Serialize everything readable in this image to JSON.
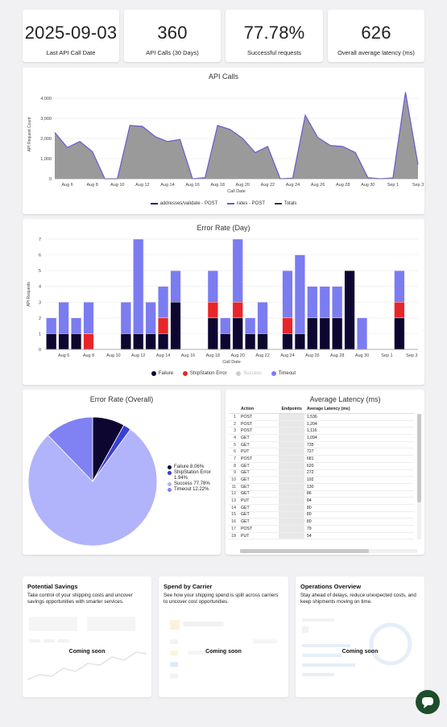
{
  "kpis": [
    {
      "value": "2025-09-03",
      "label": "Last API Call Date"
    },
    {
      "value": "360",
      "label": "API Calls (30 Days)"
    },
    {
      "value": "77.78%",
      "label": "Successful requests"
    },
    {
      "value": "626",
      "label": "Overall average latency (ms)"
    }
  ],
  "api_calls_chart": {
    "title": "API Calls",
    "ylabel": "API Request Count",
    "xlabel": "Call Date",
    "yticks": [
      "0",
      "1,000",
      "2,000",
      "3,000",
      "4,000"
    ],
    "xticks": [
      "Aug 6",
      "Aug 8",
      "Aug 10",
      "Aug 12",
      "Aug 14",
      "Aug 16",
      "Aug 18",
      "Aug 20",
      "Aug 22",
      "Aug 24",
      "Aug 26",
      "Aug 28",
      "Aug 30",
      "Sep 1",
      "Sep 3"
    ],
    "legend": [
      {
        "name": "addresses/validate - POST",
        "color": "#1a237e"
      },
      {
        "name": "rates - POST",
        "color": "#6a5acd"
      },
      {
        "name": "Totals",
        "color": "#333333"
      }
    ]
  },
  "error_rate_day_chart": {
    "title": "Error Rate (Day)",
    "ylabel": "API Requests",
    "xlabel": "Call Date",
    "yticks": [
      "0",
      "1",
      "2",
      "3",
      "4",
      "5",
      "6",
      "7"
    ],
    "legend": [
      {
        "name": "Failure",
        "color": "#0d0630"
      },
      {
        "name": "ShipStation Error",
        "color": "#e8262a"
      },
      {
        "name": "Success",
        "color": "#cfcfcf"
      },
      {
        "name": "Timeout",
        "color": "#7b7cf0"
      }
    ]
  },
  "error_rate_overall": {
    "title": "Error Rate (Overall)",
    "legend": [
      {
        "name": "Failure",
        "pct": "8.06%",
        "color": "#0d0630"
      },
      {
        "name": "ShipStation Error",
        "pct": "1.94%",
        "color": "#3a3fd6"
      },
      {
        "name": "Success",
        "pct": "77.78%",
        "color": "#b1b3fb"
      },
      {
        "name": "Timeout",
        "pct": "12.22%",
        "color": "#8081f2"
      }
    ]
  },
  "latency_table": {
    "title": "Average Latency (ms)",
    "headers": [
      "Action",
      "Endpoints",
      "Average Latency (ms)"
    ],
    "rows": [
      {
        "n": "1",
        "action": "POST",
        "latency": "1,536"
      },
      {
        "n": "2",
        "action": "POST",
        "latency": "1,204"
      },
      {
        "n": "3",
        "action": "POST",
        "latency": "1,116"
      },
      {
        "n": "4",
        "action": "GET",
        "latency": "1,094"
      },
      {
        "n": "5",
        "action": "GET",
        "latency": "735"
      },
      {
        "n": "6",
        "action": "PUT",
        "latency": "727"
      },
      {
        "n": "7",
        "action": "POST",
        "latency": "681"
      },
      {
        "n": "8",
        "action": "GET",
        "latency": "620"
      },
      {
        "n": "9",
        "action": "GET",
        "latency": "272"
      },
      {
        "n": "10",
        "action": "GET",
        "latency": "192"
      },
      {
        "n": "11",
        "action": "GET",
        "latency": "130"
      },
      {
        "n": "12",
        "action": "GET",
        "latency": "86"
      },
      {
        "n": "13",
        "action": "PUT",
        "latency": "84"
      },
      {
        "n": "14",
        "action": "GET",
        "latency": "80"
      },
      {
        "n": "15",
        "action": "GET",
        "latency": "80"
      },
      {
        "n": "16",
        "action": "GET",
        "latency": "80"
      },
      {
        "n": "17",
        "action": "POST",
        "latency": "79"
      },
      {
        "n": "18",
        "action": "PUT",
        "latency": "54"
      }
    ]
  },
  "promos": [
    {
      "title": "Potential Savings",
      "desc": "Take control of your shipping costs and uncover savings opportunities with smarter services.",
      "coming": "Coming soon"
    },
    {
      "title": "Spend by Carrier",
      "desc": "See how your shipping spend is split across carriers to uncover cost opportunities.",
      "coming": "Coming soon"
    },
    {
      "title": "Operations Overview",
      "desc": "Stay ahead of delays, reduce unexpected costs, and keep shipments moving on time.",
      "coming": "Coming soon"
    }
  ],
  "chart_data": [
    {
      "type": "area",
      "title": "API Calls",
      "xlabel": "Call Date",
      "ylabel": "API Request Count",
      "ylim": [
        0,
        4400
      ],
      "x": [
        "Aug 5",
        "Aug 6",
        "Aug 7",
        "Aug 8",
        "Aug 9",
        "Aug 10",
        "Aug 11",
        "Aug 12",
        "Aug 13",
        "Aug 14",
        "Aug 15",
        "Aug 16",
        "Aug 17",
        "Aug 18",
        "Aug 19",
        "Aug 20",
        "Aug 21",
        "Aug 22",
        "Aug 23",
        "Aug 24",
        "Aug 25",
        "Aug 26",
        "Aug 27",
        "Aug 28",
        "Aug 29",
        "Aug 30",
        "Aug 31",
        "Sep 1",
        "Sep 2",
        "Sep 3"
      ],
      "series": [
        {
          "name": "Totals",
          "values": [
            2300,
            1550,
            1850,
            1350,
            0,
            0,
            2650,
            2600,
            2100,
            1850,
            1950,
            0,
            50,
            2650,
            2450,
            2000,
            1300,
            1600,
            0,
            30,
            3150,
            2050,
            1650,
            1600,
            1300,
            50,
            0,
            40,
            4300,
            700
          ]
        }
      ]
    },
    {
      "type": "bar",
      "title": "Error Rate (Day)",
      "xlabel": "Call Date",
      "ylabel": "API Requests",
      "ylim": [
        0,
        7
      ],
      "x": [
        "Aug 5",
        "Aug 6",
        "Aug 7",
        "Aug 8",
        "Aug 9",
        "Aug 10",
        "Aug 11",
        "Aug 12",
        "Aug 13",
        "Aug 14",
        "Aug 15",
        "Aug 16",
        "Aug 17",
        "Aug 18",
        "Aug 19",
        "Aug 20",
        "Aug 21",
        "Aug 22",
        "Aug 23",
        "Aug 24",
        "Aug 25",
        "Aug 26",
        "Aug 27",
        "Aug 28",
        "Aug 29",
        "Aug 30",
        "Aug 31",
        "Sep 1",
        "Sep 2",
        "Sep 3"
      ],
      "series": [
        {
          "name": "Failure",
          "values": [
            1,
            1,
            1,
            0,
            0,
            0,
            1,
            1,
            1,
            1,
            3,
            0,
            0,
            2,
            1,
            2,
            1,
            1,
            0,
            1,
            1,
            2,
            2,
            2,
            5,
            0,
            0,
            0,
            2,
            0
          ]
        },
        {
          "name": "ShipStation Error",
          "values": [
            0,
            0,
            0,
            1,
            0,
            0,
            0,
            0,
            0,
            1,
            0,
            0,
            0,
            1,
            0,
            1,
            0,
            0,
            0,
            1,
            0,
            0,
            0,
            0,
            0,
            0,
            0,
            0,
            1,
            0
          ]
        },
        {
          "name": "Timeout",
          "values": [
            1,
            2,
            1,
            2,
            0,
            0,
            2,
            6,
            2,
            2,
            2,
            0,
            0,
            2,
            1,
            4,
            1,
            2,
            0,
            3,
            5,
            2,
            2,
            2,
            0,
            2,
            0,
            0,
            2,
            0
          ]
        }
      ]
    },
    {
      "type": "pie",
      "title": "Error Rate (Overall)",
      "categories": [
        "Failure",
        "ShipStation Error",
        "Success",
        "Timeout"
      ],
      "values": [
        8.06,
        1.94,
        77.78,
        12.22
      ]
    }
  ]
}
